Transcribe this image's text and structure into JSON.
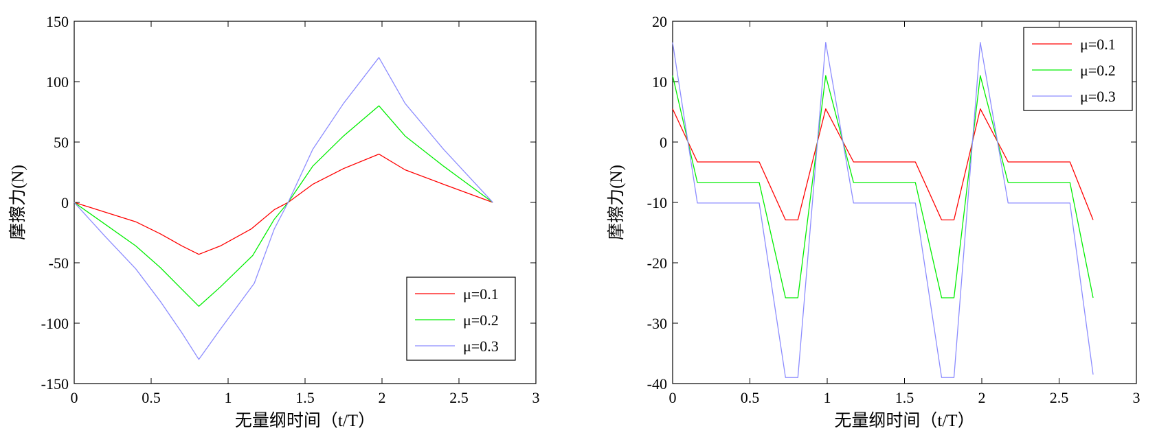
{
  "chart_data": [
    {
      "type": "line",
      "title": "",
      "xlabel": "无量纲时间（t/T）",
      "ylabel": "摩擦力(N)",
      "xlim": [
        0,
        3
      ],
      "ylim": [
        -150,
        150
      ],
      "xticks": [
        0,
        0.5,
        1,
        1.5,
        2,
        2.5,
        3
      ],
      "xtick_labels": [
        "0",
        "0.5",
        "1",
        "1.5",
        "2",
        "2.5",
        "3"
      ],
      "yticks": [
        -150,
        -100,
        -50,
        0,
        50,
        100,
        150
      ],
      "ytick_labels": [
        "-150",
        "-100",
        "-50",
        "0",
        "50",
        "100",
        "150"
      ],
      "grid": false,
      "legend_position": "bottom-right",
      "series": [
        {
          "name": "μ=0.1",
          "color": "#ff0000",
          "points": [
            [
              0,
              0
            ],
            [
              0.2,
              -8
            ],
            [
              0.4,
              -16
            ],
            [
              0.56,
              -26
            ],
            [
              0.7,
              -36
            ],
            [
              0.81,
              -43
            ],
            [
              0.95,
              -36
            ],
            [
              1.15,
              -22
            ],
            [
              1.3,
              -6
            ],
            [
              1.39,
              0
            ],
            [
              1.55,
              15
            ],
            [
              1.75,
              28
            ],
            [
              1.98,
              40
            ],
            [
              2.15,
              27
            ],
            [
              2.4,
              15
            ],
            [
              2.72,
              0
            ]
          ]
        },
        {
          "name": "μ=0.2",
          "color": "#00ee00",
          "points": [
            [
              0,
              0
            ],
            [
              0.2,
              -18
            ],
            [
              0.4,
              -36
            ],
            [
              0.56,
              -54
            ],
            [
              0.7,
              -72
            ],
            [
              0.81,
              -86
            ],
            [
              0.95,
              -70
            ],
            [
              1.16,
              -44
            ],
            [
              1.3,
              -14
            ],
            [
              1.39,
              0
            ],
            [
              1.55,
              30
            ],
            [
              1.75,
              55
            ],
            [
              1.98,
              80
            ],
            [
              2.15,
              55
            ],
            [
              2.4,
              30
            ],
            [
              2.72,
              0
            ]
          ]
        },
        {
          "name": "μ=0.3",
          "color": "#8c8cff",
          "points": [
            [
              0,
              0
            ],
            [
              0.2,
              -28
            ],
            [
              0.4,
              -55
            ],
            [
              0.56,
              -82
            ],
            [
              0.7,
              -108
            ],
            [
              0.81,
              -130
            ],
            [
              0.95,
              -105
            ],
            [
              1.17,
              -67
            ],
            [
              1.3,
              -22
            ],
            [
              1.39,
              0
            ],
            [
              1.55,
              44
            ],
            [
              1.75,
              82
            ],
            [
              1.98,
              120
            ],
            [
              2.15,
              82
            ],
            [
              2.4,
              44
            ],
            [
              2.72,
              0
            ]
          ]
        }
      ]
    },
    {
      "type": "line",
      "title": "",
      "xlabel": "无量纲时间（t/T）",
      "ylabel": "摩擦力(N)",
      "xlim": [
        0,
        3
      ],
      "ylim": [
        -40,
        20
      ],
      "xticks": [
        0,
        0.5,
        1,
        1.5,
        2,
        2.5,
        3
      ],
      "xtick_labels": [
        "0",
        "0.5",
        "1",
        "1.5",
        "2",
        "2.5",
        "3"
      ],
      "yticks": [
        -40,
        -30,
        -20,
        -10,
        0,
        10,
        20
      ],
      "ytick_labels": [
        "-40",
        "-30",
        "-20",
        "-10",
        "0",
        "10",
        "20"
      ],
      "grid": false,
      "legend_position": "top-right",
      "series": [
        {
          "name": "μ=0.1",
          "color": "#ff0000",
          "points": [
            [
              0,
              5.5
            ],
            [
              0.16,
              -3.3
            ],
            [
              0.56,
              -3.3
            ],
            [
              0.73,
              -12.9
            ],
            [
              0.81,
              -12.9
            ],
            [
              0.99,
              5.5
            ],
            [
              1.17,
              -3.3
            ],
            [
              1.57,
              -3.3
            ],
            [
              1.74,
              -12.9
            ],
            [
              1.82,
              -12.9
            ],
            [
              1.99,
              5.5
            ],
            [
              2.17,
              -3.3
            ],
            [
              2.57,
              -3.3
            ],
            [
              2.72,
              -12.9
            ]
          ]
        },
        {
          "name": "μ=0.2",
          "color": "#00ee00",
          "points": [
            [
              0,
              11.0
            ],
            [
              0.16,
              -6.7
            ],
            [
              0.56,
              -6.7
            ],
            [
              0.73,
              -25.8
            ],
            [
              0.81,
              -25.8
            ],
            [
              0.99,
              11.0
            ],
            [
              1.17,
              -6.7
            ],
            [
              1.57,
              -6.7
            ],
            [
              1.74,
              -25.8
            ],
            [
              1.82,
              -25.8
            ],
            [
              1.99,
              11.0
            ],
            [
              2.17,
              -6.7
            ],
            [
              2.57,
              -6.7
            ],
            [
              2.72,
              -25.8
            ]
          ]
        },
        {
          "name": "μ=0.3",
          "color": "#8c8cff",
          "points": [
            [
              0,
              16.5
            ],
            [
              0.16,
              -10.1
            ],
            [
              0.56,
              -10.1
            ],
            [
              0.73,
              -39.0
            ],
            [
              0.81,
              -39.0
            ],
            [
              0.99,
              16.5
            ],
            [
              1.17,
              -10.1
            ],
            [
              1.57,
              -10.1
            ],
            [
              1.74,
              -39.0
            ],
            [
              1.82,
              -39.0
            ],
            [
              1.99,
              16.5
            ],
            [
              2.17,
              -10.1
            ],
            [
              2.57,
              -10.1
            ],
            [
              2.72,
              -38.5
            ]
          ]
        }
      ]
    }
  ]
}
